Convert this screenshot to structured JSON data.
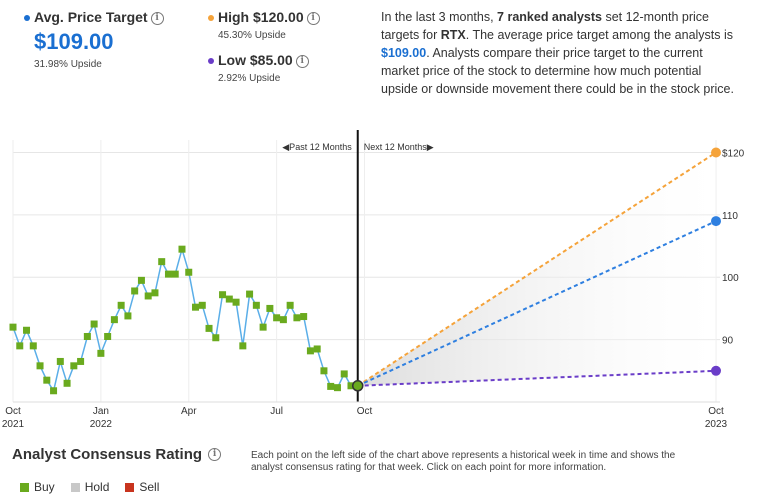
{
  "header": {
    "avg": {
      "label": "Avg. Price Target",
      "value": "$109.00",
      "upside": "31.98% Upside",
      "color": "#1a6fd1"
    },
    "high": {
      "label": "High $120.00",
      "upside": "45.30% Upside",
      "color": "#f5a33a"
    },
    "low": {
      "label": "Low $85.00",
      "upside": "2.92% Upside",
      "color": "#6a3dc8"
    },
    "info_icon": "info-icon"
  },
  "description": {
    "p1": "In the last 3 months, ",
    "b1": "7 ranked analysts",
    "p2": " set 12-month price targets for ",
    "b2": "RTX",
    "p3": ". The average price target among the analysts is ",
    "b3": "$109.00",
    "p4": ". Analysts compare their price target to the current market price of the stock to determine how much potential upside or downside movement there could be in the stock price."
  },
  "chart_data": {
    "type": "line",
    "past_label": "Past 12 Months",
    "next_label": "Next 12 Months",
    "ylim": [
      80,
      122
    ],
    "yticks": [
      {
        "value": 120,
        "label": "$120"
      },
      {
        "value": 110,
        "label": "110"
      },
      {
        "value": 100,
        "label": "100"
      },
      {
        "value": 90,
        "label": "90"
      }
    ],
    "xticks": [
      {
        "week": 0,
        "label": "Oct",
        "year": "2021"
      },
      {
        "week": 13,
        "label": "Jan",
        "year": "2022"
      },
      {
        "week": 26,
        "label": "Apr",
        "year": ""
      },
      {
        "week": 39,
        "label": "Jul",
        "year": ""
      },
      {
        "week": 52,
        "label": "Oct",
        "year": ""
      },
      {
        "week": 104,
        "label": "Oct",
        "year": "2023"
      }
    ],
    "price_series": {
      "name": "Price",
      "color": "#5aaee8",
      "points": [
        [
          0,
          92.0
        ],
        [
          1,
          89.0
        ],
        [
          2,
          91.5
        ],
        [
          3,
          89.0
        ],
        [
          4,
          85.8
        ],
        [
          5,
          83.5
        ],
        [
          6,
          81.8
        ],
        [
          7,
          86.5
        ],
        [
          8,
          83.0
        ],
        [
          9,
          85.8
        ],
        [
          10,
          86.5
        ],
        [
          11,
          90.5
        ],
        [
          12,
          92.5
        ],
        [
          13,
          87.8
        ],
        [
          14,
          90.5
        ],
        [
          15,
          93.2
        ],
        [
          16,
          95.5
        ],
        [
          17,
          93.8
        ],
        [
          18,
          97.8
        ],
        [
          19,
          99.5
        ],
        [
          20,
          97.0
        ],
        [
          21,
          97.5
        ],
        [
          22,
          102.5
        ],
        [
          23,
          100.5
        ],
        [
          24,
          100.5
        ],
        [
          25,
          104.5
        ],
        [
          26,
          100.8
        ],
        [
          27,
          95.2
        ],
        [
          28,
          95.5
        ],
        [
          29,
          91.8
        ],
        [
          30,
          90.3
        ],
        [
          31,
          97.2
        ],
        [
          32,
          96.5
        ],
        [
          33,
          96.0
        ],
        [
          34,
          89.0
        ],
        [
          35,
          97.3
        ],
        [
          36,
          95.5
        ],
        [
          37,
          92.0
        ],
        [
          38,
          95.0
        ],
        [
          39,
          93.5
        ],
        [
          40,
          93.2
        ],
        [
          41,
          95.5
        ],
        [
          42,
          93.5
        ],
        [
          43,
          93.7
        ],
        [
          44,
          88.2
        ],
        [
          45,
          88.5
        ],
        [
          46,
          85.0
        ],
        [
          47,
          82.5
        ],
        [
          48,
          82.3
        ],
        [
          49,
          84.5
        ],
        [
          50,
          82.6
        ]
      ]
    },
    "buy_points_color": "#6aaa1e",
    "current": {
      "week": 51,
      "price": 82.6
    },
    "targets": [
      {
        "name": "High",
        "value": 120,
        "color": "#f5a33a"
      },
      {
        "name": "Average",
        "value": 109,
        "color": "#2e7fe0"
      },
      {
        "name": "Low",
        "value": 85,
        "color": "#6a3dc8"
      }
    ],
    "target_week": 104
  },
  "rating": {
    "title": "Analyst Consensus Rating",
    "description": "Each point on the left side of the chart above represents a historical week in time and shows the analyst consensus rating for that week. Click on each point for more information.",
    "legend": [
      {
        "label": "Buy",
        "color": "#6aaa1e"
      },
      {
        "label": "Hold",
        "color": "#c8c8c8"
      },
      {
        "label": "Sell",
        "color": "#c8341e"
      }
    ]
  }
}
